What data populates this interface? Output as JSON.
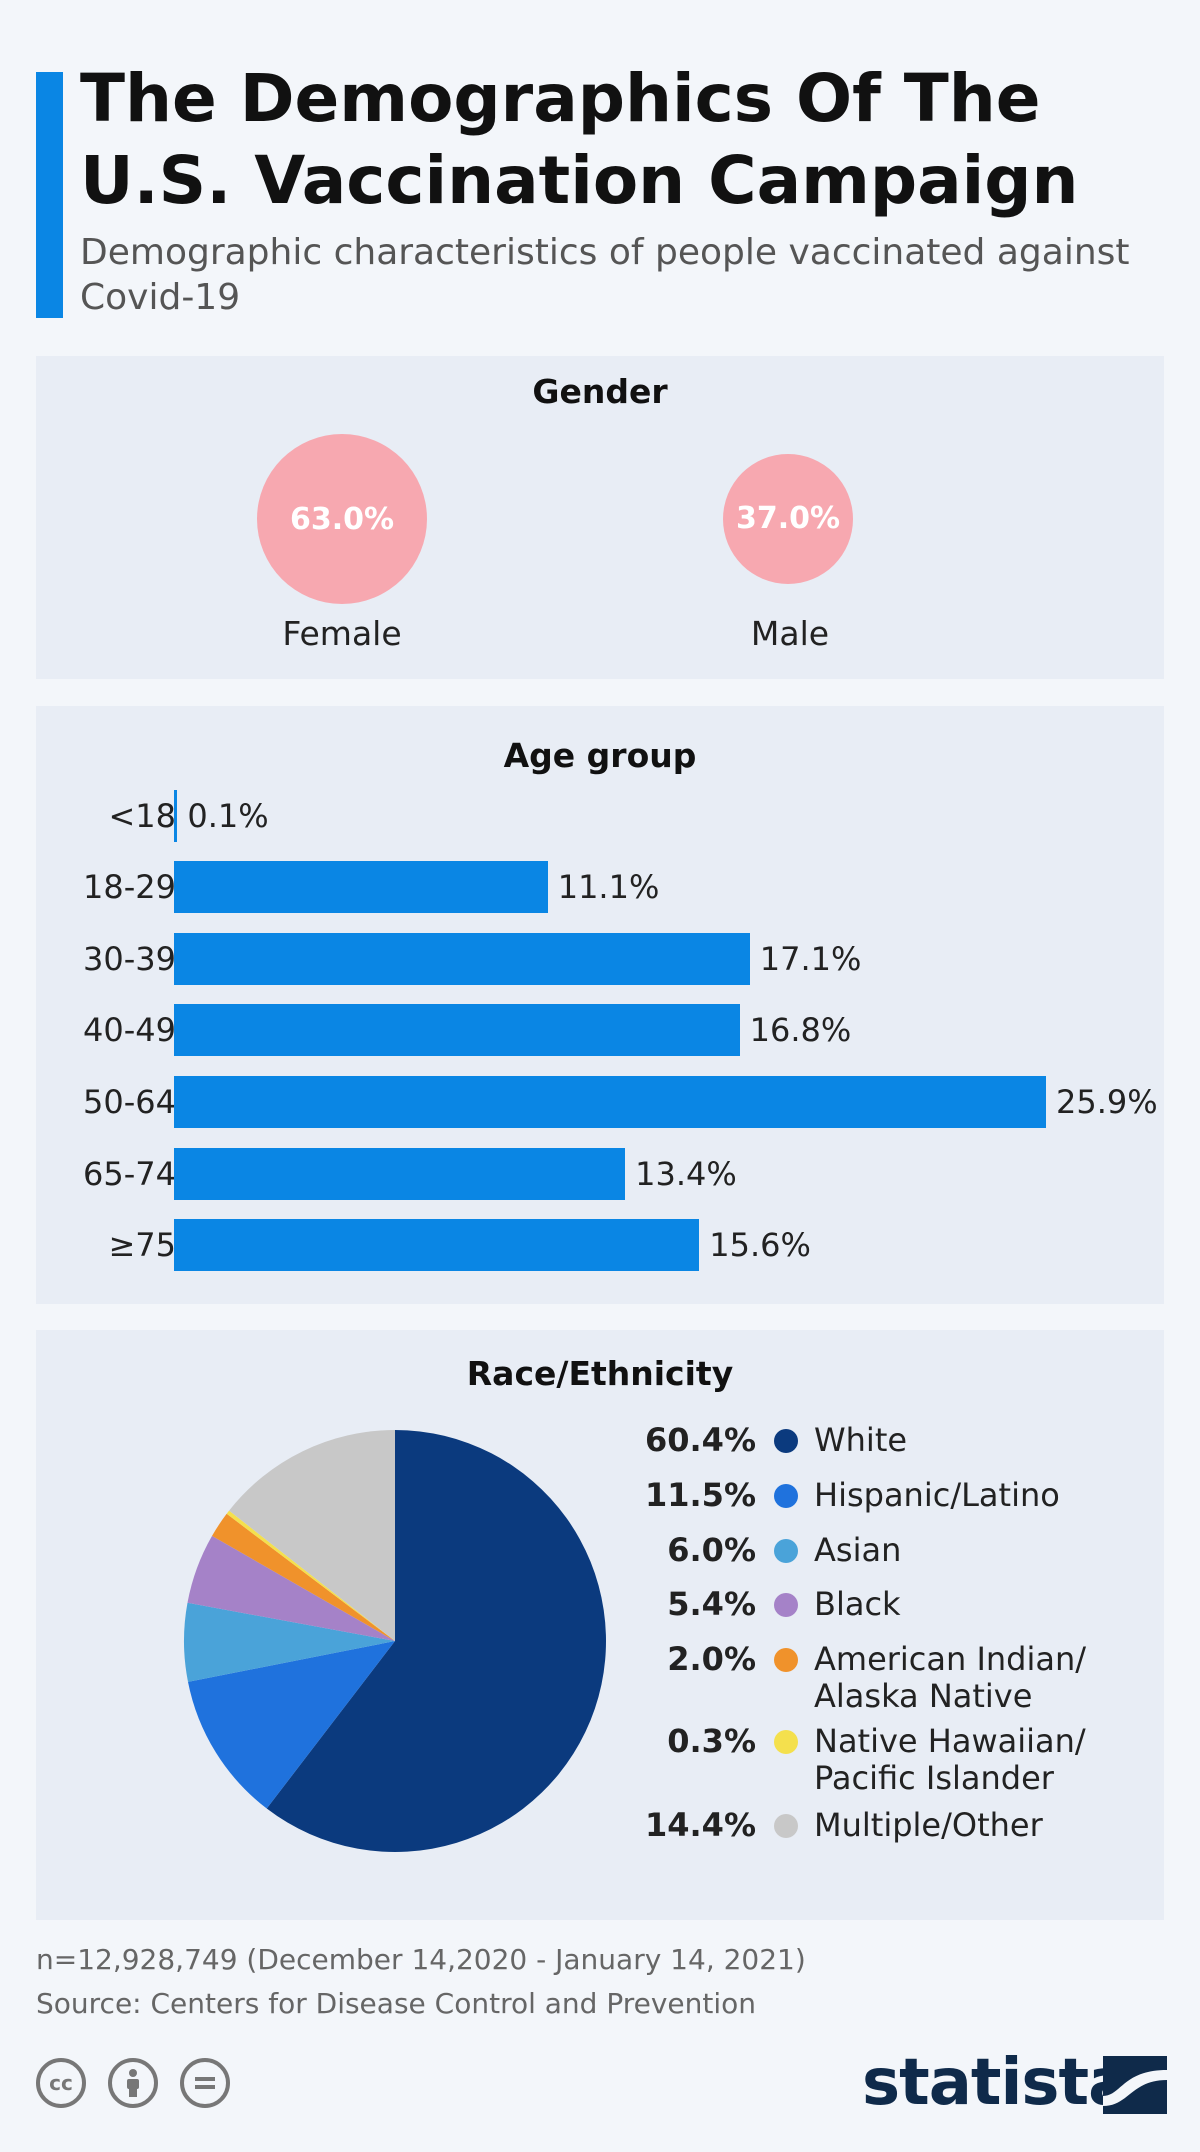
{
  "header": {
    "title": "The Demographics Of The U.S. Vaccination Campaign",
    "subtitle": "Demographic characteristics of people vaccinated against Covid-19"
  },
  "colors": {
    "accent": "#0a86e4",
    "gender_circle": "#f7a8b0",
    "panel_bg": "#e8edf5"
  },
  "chart_data": [
    {
      "type": "bubble",
      "title": "Gender",
      "categories": [
        "Female",
        "Male"
      ],
      "values": [
        63.0,
        37.0
      ],
      "value_labels": [
        "63.0%",
        "37.0%"
      ]
    },
    {
      "type": "bar",
      "orientation": "horizontal",
      "title": "Age group",
      "categories": [
        "<18",
        "18-29",
        "30-39",
        "40-49",
        "50-64",
        "65-74",
        "≥75"
      ],
      "values": [
        0.1,
        11.1,
        17.1,
        16.8,
        25.9,
        13.4,
        15.6
      ],
      "value_labels": [
        "0.1%",
        "11.1%",
        "17.1%",
        "16.8%",
        "25.9%",
        "13.4%",
        "15.6%"
      ],
      "xlim": [
        0,
        25.9
      ],
      "color": "#0a86e4"
    },
    {
      "type": "pie",
      "title": "Race/Ethnicity",
      "slices": [
        {
          "label": "White",
          "value": 60.4,
          "value_label": "60.4%",
          "color": "#0b3a7e"
        },
        {
          "label": "Hispanic/Latino",
          "value": 11.5,
          "value_label": "11.5%",
          "color": "#1f72dd"
        },
        {
          "label": "Asian",
          "value": 6.0,
          "value_label": "6.0%",
          "color": "#4aa3d9"
        },
        {
          "label": "Black",
          "value": 5.4,
          "value_label": "5.4%",
          "color": "#a582c8"
        },
        {
          "label": "American Indian/ Alaska Native",
          "value": 2.0,
          "value_label": "2.0%",
          "color": "#f0922b"
        },
        {
          "label": "Native Hawaiian/ Pacific Islander",
          "value": 0.3,
          "value_label": "0.3%",
          "color": "#f4e04d"
        },
        {
          "label": "Multiple/Other",
          "value": 14.4,
          "value_label": "14.4%",
          "color": "#c8c8c8"
        }
      ]
    }
  ],
  "footer": {
    "note": "n=12,928,749 (December 14,2020 - January 14, 2021)",
    "source": "Source: Centers for Disease Control and Prevention",
    "brand": "statista",
    "cc_icons": [
      "creative-commons-icon",
      "attribution-icon",
      "no-derivatives-icon"
    ]
  }
}
